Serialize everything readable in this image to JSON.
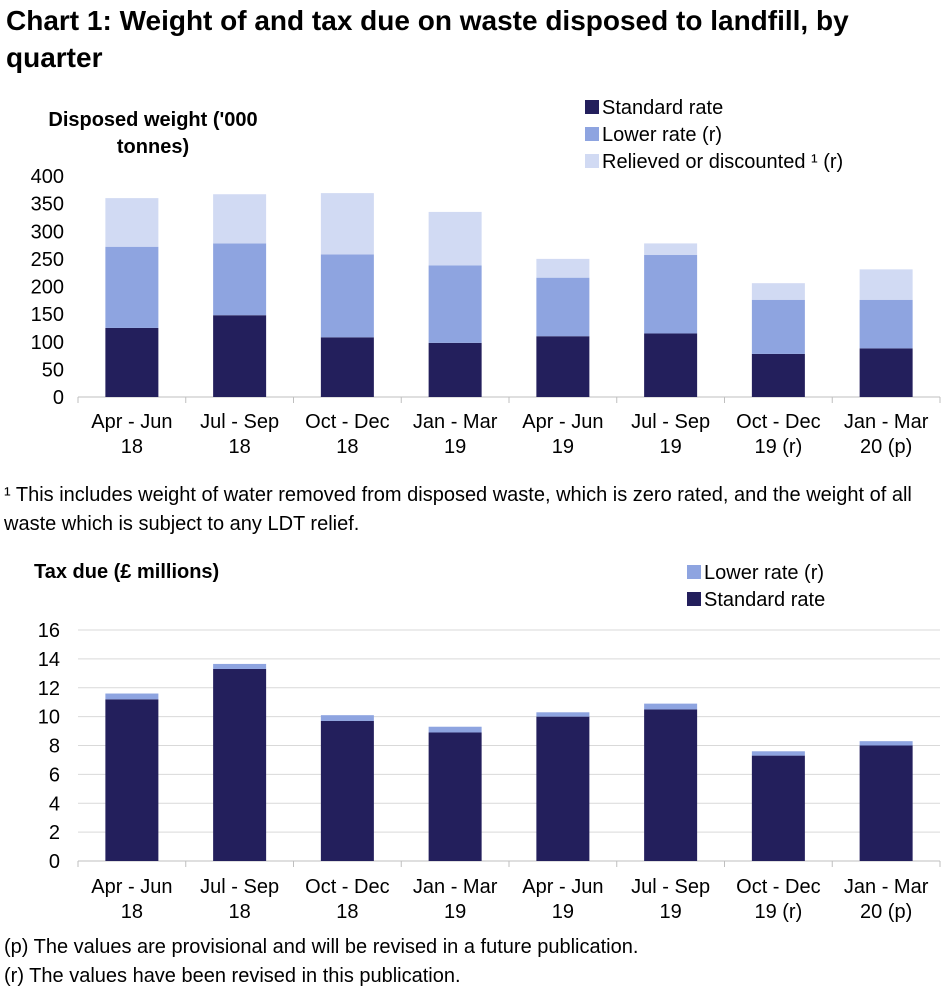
{
  "title": "Chart 1: Weight of and tax due on waste disposed to landfill, by quarter",
  "footnotes": {
    "relief_note": "¹ This includes weight of water removed from disposed waste, which is zero rated, and the weight of all waste which is subject to any LDT relief.",
    "provisional": "(p) The values are provisional and will be revised in a future publication.",
    "revised": "(r) The values have been revised in this publication."
  },
  "colors": {
    "standard": "#231f5c",
    "lower": "#8ea4e0",
    "relieved": "#d1daf3",
    "grid": "#d9d9d9",
    "axis": "#bfbfbf"
  },
  "chart_data": [
    {
      "type": "bar",
      "stacked": true,
      "ylabel": "Disposed weight ('000 tonnes)",
      "ylabel_lines": [
        "Disposed weight ('000",
        "tonnes)"
      ],
      "categories": [
        [
          "Apr - Jun",
          "18"
        ],
        [
          "Jul - Sep",
          "18"
        ],
        [
          "Oct - Dec",
          "18"
        ],
        [
          "Jan - Mar",
          "19"
        ],
        [
          "Apr - Jun",
          "19"
        ],
        [
          "Jul - Sep",
          "19"
        ],
        [
          "Oct - Dec",
          "19 (r)"
        ],
        [
          "Jan - Mar",
          "20 (p)"
        ]
      ],
      "series": [
        {
          "name": "Standard rate",
          "color_key": "standard",
          "values": [
            125,
            148,
            108,
            98,
            110,
            115,
            78,
            88
          ]
        },
        {
          "name": "Lower rate (r)",
          "color_key": "lower",
          "values": [
            147,
            130,
            150,
            140,
            106,
            142,
            98,
            88
          ]
        },
        {
          "name": "Relieved or discounted ¹ (r)",
          "color_key": "relieved",
          "values": [
            88,
            89,
            111,
            97,
            34,
            21,
            30,
            55
          ]
        }
      ],
      "legend_order": [
        0,
        1,
        2
      ],
      "ylim": [
        0,
        400
      ],
      "yticks": [
        0,
        50,
        100,
        150,
        200,
        250,
        300,
        350,
        400
      ],
      "grid": false,
      "legend": "top-right"
    },
    {
      "type": "bar",
      "stacked": true,
      "ylabel": "Tax due (£ millions)",
      "ylabel_lines": [
        "Tax due (£ millions)"
      ],
      "categories": [
        [
          "Apr - Jun",
          "18"
        ],
        [
          "Jul - Sep",
          "18"
        ],
        [
          "Oct - Dec",
          "18"
        ],
        [
          "Jan - Mar",
          "19"
        ],
        [
          "Apr - Jun",
          "19"
        ],
        [
          "Jul - Sep",
          "19"
        ],
        [
          "Oct - Dec",
          "19 (r)"
        ],
        [
          "Jan - Mar",
          "20 (p)"
        ]
      ],
      "series": [
        {
          "name": "Standard rate",
          "color_key": "standard",
          "values": [
            11.2,
            13.3,
            9.7,
            8.9,
            10.0,
            10.5,
            7.3,
            8.0
          ]
        },
        {
          "name": "Lower rate (r)",
          "color_key": "lower",
          "values": [
            0.4,
            0.35,
            0.4,
            0.4,
            0.3,
            0.4,
            0.3,
            0.3
          ]
        }
      ],
      "legend_order": [
        1,
        0
      ],
      "ylim": [
        0,
        16
      ],
      "yticks": [
        0,
        2,
        4,
        6,
        8,
        10,
        12,
        14,
        16
      ],
      "grid": true,
      "legend": "top-right"
    }
  ]
}
